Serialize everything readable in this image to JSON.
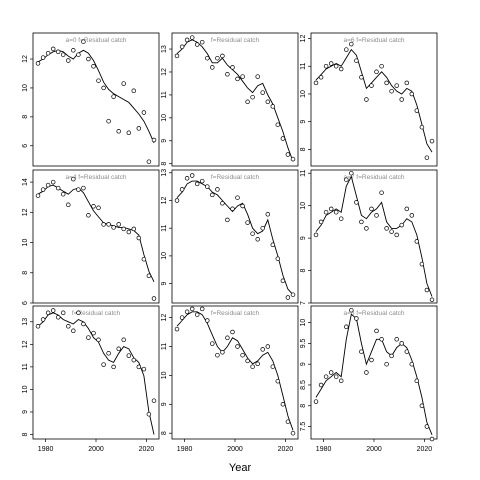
{
  "figure": {
    "xlabel": "Year"
  },
  "chart_data": [
    {
      "type": "line",
      "panel_label": "a=0 f=Residual catch",
      "xlim": [
        1975,
        2025
      ],
      "ylim": [
        4.6,
        13.8
      ],
      "yticks": [
        6,
        8,
        10,
        12
      ],
      "xticks": [],
      "x": [
        1977,
        1979,
        1981,
        1983,
        1985,
        1987,
        1989,
        1991,
        1993,
        1995,
        1997,
        1999,
        2001,
        2003,
        2005,
        2007,
        2009,
        2011,
        2013,
        2015,
        2017,
        2019,
        2021,
        2023
      ],
      "fitted": [
        11.8,
        12.0,
        12.3,
        12.5,
        12.6,
        12.5,
        12.2,
        12.0,
        12.4,
        12.6,
        12.4,
        11.9,
        11.2,
        10.4,
        9.9,
        9.6,
        9.4,
        9.2,
        9.0,
        8.6,
        8.2,
        7.7,
        7.0,
        6.2
      ],
      "observed": [
        11.7,
        12.1,
        12.4,
        12.7,
        12.5,
        12.3,
        11.9,
        12.6,
        12.3,
        13.2,
        12.0,
        11.5,
        10.5,
        10.0,
        7.7,
        9.4,
        7.0,
        10.3,
        6.9,
        9.8,
        7.2,
        8.3,
        4.9,
        6.4
      ]
    },
    {
      "type": "line",
      "panel_label": "f=Residual catch",
      "xlim": [
        1975,
        2025
      ],
      "ylim": [
        7.9,
        13.7
      ],
      "yticks": [
        8,
        9,
        10,
        11,
        12,
        13
      ],
      "xticks": [],
      "x": [
        1977,
        1979,
        1981,
        1983,
        1985,
        1987,
        1989,
        1991,
        1993,
        1995,
        1997,
        1999,
        2001,
        2003,
        2005,
        2007,
        2009,
        2011,
        2013,
        2015,
        2017,
        2019,
        2021,
        2023
      ],
      "fitted": [
        12.8,
        13.0,
        13.3,
        13.4,
        13.3,
        13.1,
        12.8,
        12.4,
        12.4,
        12.6,
        12.3,
        12.1,
        11.9,
        11.6,
        11.3,
        11.1,
        11.4,
        11.5,
        11.0,
        10.6,
        10.0,
        9.4,
        8.7,
        8.1
      ],
      "observed": [
        12.7,
        13.1,
        13.4,
        13.5,
        13.2,
        13.3,
        12.6,
        12.2,
        12.6,
        12.7,
        11.9,
        12.2,
        11.7,
        11.8,
        10.7,
        10.9,
        11.8,
        11.1,
        10.7,
        10.5,
        9.7,
        9.1,
        8.4,
        8.2
      ]
    },
    {
      "type": "line",
      "panel_label": "a=6 f=Residual catch",
      "xlim": [
        1975,
        2025
      ],
      "ylim": [
        7.4,
        12.2
      ],
      "yticks": [
        8,
        9,
        10,
        11,
        12
      ],
      "xticks": [],
      "x": [
        1977,
        1979,
        1981,
        1983,
        1985,
        1987,
        1989,
        1991,
        1993,
        1995,
        1997,
        1999,
        2001,
        2003,
        2005,
        2007,
        2009,
        2011,
        2013,
        2015,
        2017,
        2019,
        2021,
        2023
      ],
      "fitted": [
        10.5,
        10.7,
        10.9,
        11.0,
        11.1,
        11.0,
        11.3,
        11.6,
        11.4,
        10.8,
        10.2,
        10.4,
        10.6,
        10.8,
        10.6,
        10.3,
        10.1,
        10.0,
        10.2,
        10.1,
        9.6,
        8.9,
        8.2,
        7.9
      ],
      "observed": [
        10.4,
        10.6,
        11.0,
        11.1,
        11.0,
        10.9,
        11.6,
        11.8,
        11.2,
        10.6,
        9.8,
        10.3,
        10.8,
        11.0,
        10.4,
        10.1,
        10.3,
        9.8,
        10.4,
        10.0,
        9.4,
        8.8,
        7.7,
        8.3
      ]
    },
    {
      "type": "line",
      "panel_label": "a=4 f=Residual catch",
      "xlim": [
        1975,
        2025
      ],
      "ylim": [
        6.0,
        14.8
      ],
      "yticks": [
        6,
        8,
        10,
        12,
        14
      ],
      "xticks": [],
      "x": [
        1977,
        1979,
        1981,
        1983,
        1985,
        1987,
        1989,
        1991,
        1993,
        1995,
        1997,
        1999,
        2001,
        2003,
        2005,
        2007,
        2009,
        2011,
        2013,
        2015,
        2017,
        2019,
        2021,
        2023
      ],
      "fitted": [
        13.2,
        13.4,
        13.7,
        13.8,
        13.6,
        13.4,
        13.2,
        13.5,
        13.6,
        13.3,
        12.7,
        12.1,
        11.7,
        11.3,
        11.2,
        11.1,
        11.0,
        11.0,
        10.9,
        10.8,
        10.5,
        9.2,
        8.1,
        7.4
      ],
      "observed": [
        13.1,
        13.5,
        13.8,
        14.0,
        13.6,
        13.2,
        12.5,
        14.2,
        13.5,
        13.6,
        11.8,
        12.4,
        12.3,
        11.2,
        11.2,
        11.0,
        11.2,
        10.9,
        10.7,
        10.9,
        10.3,
        8.9,
        7.8,
        6.3
      ]
    },
    {
      "type": "line",
      "panel_label": "f=Residual catch",
      "xlim": [
        1975,
        2025
      ],
      "ylim": [
        8.3,
        13.1
      ],
      "yticks": [
        9,
        10,
        11,
        12,
        13
      ],
      "xticks": [],
      "x": [
        1977,
        1979,
        1981,
        1983,
        1985,
        1987,
        1989,
        1991,
        1993,
        1995,
        1997,
        1999,
        2001,
        2003,
        2005,
        2007,
        2009,
        2011,
        2013,
        2015,
        2017,
        2019,
        2021,
        2023
      ],
      "fitted": [
        12.1,
        12.3,
        12.6,
        12.7,
        12.7,
        12.6,
        12.5,
        12.3,
        12.2,
        12.0,
        11.8,
        11.6,
        11.8,
        11.9,
        11.5,
        11.0,
        10.8,
        10.9,
        11.3,
        10.6,
        10.0,
        9.3,
        8.8,
        8.6
      ],
      "observed": [
        12.0,
        12.4,
        12.8,
        12.9,
        12.6,
        12.7,
        12.5,
        12.2,
        12.4,
        11.9,
        11.3,
        11.7,
        12.1,
        11.8,
        11.2,
        10.8,
        10.6,
        11.0,
        11.5,
        10.4,
        9.9,
        9.1,
        8.5,
        8.6
      ]
    },
    {
      "type": "line",
      "panel_label": "a=7 f=Residual catch",
      "xlim": [
        1975,
        2025
      ],
      "ylim": [
        7.0,
        11.1
      ],
      "yticks": [
        7,
        8,
        9,
        10,
        11
      ],
      "xticks": [],
      "x": [
        1977,
        1979,
        1981,
        1983,
        1985,
        1987,
        1989,
        1991,
        1993,
        1995,
        1997,
        1999,
        2001,
        2003,
        2005,
        2007,
        2009,
        2011,
        2013,
        2015,
        2017,
        2019,
        2021,
        2023
      ],
      "fitted": [
        9.2,
        9.4,
        9.7,
        9.8,
        9.9,
        9.8,
        10.6,
        10.9,
        10.3,
        9.7,
        9.6,
        9.8,
        9.9,
        10.1,
        9.5,
        9.3,
        9.3,
        9.4,
        9.6,
        9.5,
        9.1,
        8.4,
        7.6,
        7.2
      ],
      "observed": [
        9.1,
        9.5,
        9.8,
        9.9,
        9.8,
        9.6,
        10.8,
        11.0,
        10.1,
        9.5,
        9.3,
        9.9,
        9.7,
        10.4,
        9.3,
        9.2,
        9.1,
        9.4,
        9.9,
        9.7,
        8.9,
        8.2,
        7.4,
        7.1
      ]
    },
    {
      "type": "line",
      "panel_label": "f=Residual catch",
      "xlim": [
        1975,
        2025
      ],
      "ylim": [
        7.8,
        13.7
      ],
      "yticks": [
        8,
        9,
        10,
        11,
        12,
        13
      ],
      "xticks": [
        1980,
        2000,
        2020
      ],
      "x": [
        1977,
        1979,
        1981,
        1983,
        1985,
        1987,
        1989,
        1991,
        1993,
        1995,
        1997,
        1999,
        2001,
        2003,
        2005,
        2007,
        2009,
        2011,
        2013,
        2015,
        2017,
        2019,
        2021,
        2023
      ],
      "fitted": [
        12.8,
        13.0,
        13.3,
        13.4,
        13.3,
        13.1,
        13.0,
        12.9,
        13.1,
        13.0,
        12.7,
        12.3,
        12.1,
        11.6,
        11.3,
        11.2,
        11.6,
        11.9,
        11.8,
        11.4,
        11.2,
        10.6,
        9.0,
        8.0
      ],
      "observed": [
        12.8,
        13.1,
        13.4,
        13.5,
        13.2,
        13.4,
        12.8,
        12.6,
        13.4,
        12.9,
        12.3,
        12.5,
        12.2,
        11.1,
        11.6,
        11.0,
        11.8,
        12.2,
        11.5,
        11.3,
        11.0,
        10.9,
        8.9,
        9.5
      ]
    },
    {
      "type": "line",
      "panel_label": "f=Residual catch",
      "xlim": [
        1975,
        2025
      ],
      "ylim": [
        7.8,
        12.4
      ],
      "yticks": [
        8,
        9,
        10,
        11,
        12
      ],
      "xticks": [
        1980,
        2000,
        2020
      ],
      "x": [
        1977,
        1979,
        1981,
        1983,
        1985,
        1987,
        1989,
        1991,
        1993,
        1995,
        1997,
        1999,
        2001,
        2003,
        2005,
        2007,
        2009,
        2011,
        2013,
        2015,
        2017,
        2019,
        2021,
        2023
      ],
      "fitted": [
        11.7,
        11.9,
        12.1,
        12.2,
        12.2,
        12.1,
        11.8,
        11.4,
        11.0,
        10.8,
        11.0,
        11.3,
        11.2,
        10.9,
        10.6,
        10.4,
        10.5,
        10.7,
        10.8,
        10.5,
        10.0,
        9.3,
        8.6,
        8.1
      ],
      "observed": [
        11.6,
        12.0,
        12.2,
        12.3,
        12.1,
        12.3,
        11.9,
        11.1,
        10.7,
        10.8,
        11.3,
        11.5,
        11.0,
        10.7,
        10.5,
        10.3,
        10.4,
        10.9,
        11.0,
        10.3,
        9.8,
        9.0,
        8.4,
        8.0
      ]
    },
    {
      "type": "line",
      "panel_label": "a=8 f=Residual catch",
      "xlim": [
        1975,
        2025
      ],
      "ylim": [
        7.2,
        10.4
      ],
      "yticks": [
        7.5,
        8.0,
        8.5,
        9.0,
        9.5,
        10.0
      ],
      "xticks": [
        1980,
        2000,
        2020
      ],
      "x": [
        1977,
        1979,
        1981,
        1983,
        1985,
        1987,
        1989,
        1991,
        1993,
        1995,
        1997,
        1999,
        2001,
        2003,
        2005,
        2007,
        2009,
        2011,
        2013,
        2015,
        2017,
        2019,
        2021,
        2023
      ],
      "fitted": [
        8.2,
        8.4,
        8.6,
        8.7,
        8.8,
        8.7,
        9.6,
        10.2,
        10.1,
        9.5,
        9.0,
        9.3,
        9.6,
        9.6,
        9.3,
        9.2,
        9.4,
        9.5,
        9.4,
        9.1,
        8.7,
        8.2,
        7.6,
        7.3
      ],
      "observed": [
        8.1,
        8.5,
        8.7,
        8.8,
        8.7,
        8.6,
        9.9,
        10.3,
        10.1,
        9.3,
        8.8,
        9.1,
        9.8,
        9.6,
        9.0,
        9.2,
        9.6,
        9.5,
        9.3,
        9.0,
        8.6,
        8.0,
        7.5,
        7.2
      ]
    }
  ]
}
